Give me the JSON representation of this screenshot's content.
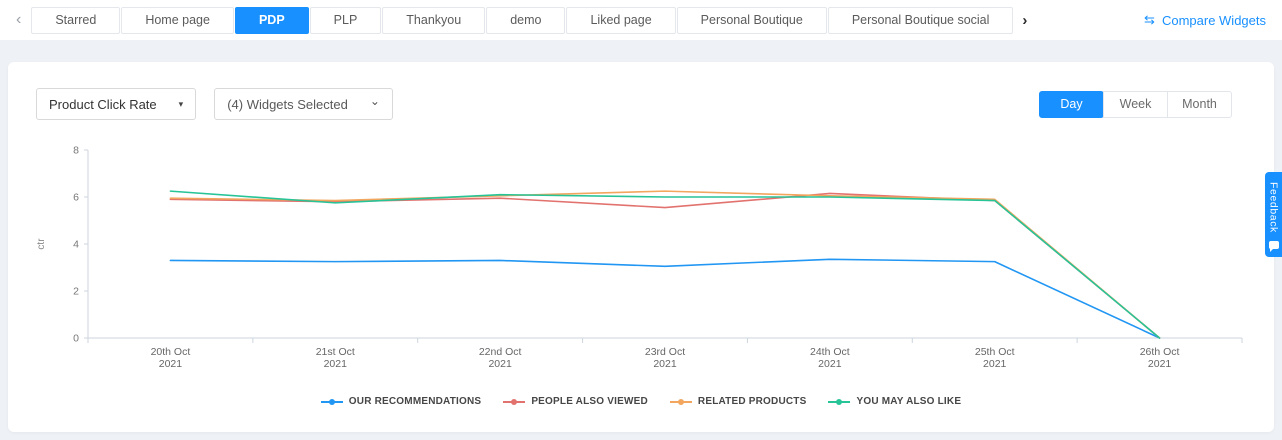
{
  "accent_color": "#1890ff",
  "tabs": {
    "prev_icon": "‹",
    "next_icon": "›",
    "items": [
      {
        "label": "Starred",
        "active": false
      },
      {
        "label": "Home page",
        "active": false
      },
      {
        "label": "PDP",
        "active": true
      },
      {
        "label": "PLP",
        "active": false
      },
      {
        "label": "Thankyou",
        "active": false
      },
      {
        "label": "demo",
        "active": false
      },
      {
        "label": "Liked page",
        "active": false
      },
      {
        "label": "Personal Boutique",
        "active": false
      },
      {
        "label": "Personal Boutique social",
        "active": false
      }
    ]
  },
  "compare_widgets": {
    "label": "Compare Widgets",
    "icon": "⇆"
  },
  "controls": {
    "metric_select": {
      "value": "Product Click Rate",
      "caret": "▾"
    },
    "widgets_select": {
      "value": "(4) Widgets Selected",
      "caret": "⌄"
    },
    "period_toggle": {
      "options": [
        "Day",
        "Week",
        "Month"
      ],
      "selected": "Day"
    }
  },
  "feedback_tab": {
    "label": "Feedback"
  },
  "chart_data": {
    "type": "line",
    "categories": [
      "20th Oct",
      "21st Oct",
      "22nd Oct",
      "23rd Oct",
      "24th Oct",
      "25th Oct",
      "26th Oct"
    ],
    "year_label": "2021",
    "ylabel": "ctr",
    "ylim": [
      0,
      8
    ],
    "yticks": [
      0,
      2,
      4,
      6,
      8
    ],
    "grid": false,
    "legend_position": "bottom",
    "series": [
      {
        "name": "OUR RECOMMENDATIONS",
        "color": "#2196f3",
        "values": [
          3.3,
          3.25,
          3.3,
          3.05,
          3.35,
          3.25,
          0
        ]
      },
      {
        "name": "PEOPLE ALSO VIEWED",
        "color": "#e2726e",
        "values": [
          5.9,
          5.8,
          5.95,
          5.55,
          6.15,
          5.85,
          0
        ]
      },
      {
        "name": "RELATED PRODUCTS",
        "color": "#f2a65e",
        "values": [
          5.95,
          5.85,
          6.05,
          6.25,
          6.05,
          5.9,
          0
        ]
      },
      {
        "name": "YOU MAY ALSO LIKE",
        "color": "#27c498",
        "values": [
          6.25,
          5.75,
          6.1,
          6.0,
          6.0,
          5.85,
          0
        ]
      }
    ]
  }
}
